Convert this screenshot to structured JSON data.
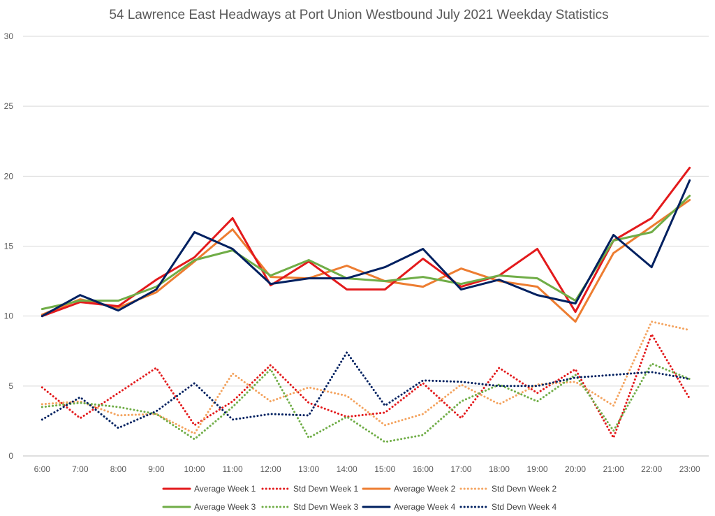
{
  "chart_data": {
    "type": "line",
    "title": "54 Lawrence East Headways at Port Union Westbound July 2021 Weekday Statistics",
    "xlabel": "",
    "ylabel": "",
    "categories": [
      "6:00",
      "7:00",
      "8:00",
      "9:00",
      "10:00",
      "11:00",
      "12:00",
      "13:00",
      "14:00",
      "15:00",
      "16:00",
      "17:00",
      "18:00",
      "19:00",
      "20:00",
      "21:00",
      "22:00",
      "23:00"
    ],
    "ylim": [
      0,
      30
    ],
    "yticks": [
      "0",
      "5",
      "10",
      "15",
      "20",
      "25",
      "30"
    ],
    "grid": "horizontal",
    "legend_position": "bottom",
    "series": [
      {
        "name": "Average Week 1",
        "style": "solid",
        "color": "#e31a1c",
        "values": [
          10.0,
          11.0,
          10.7,
          12.6,
          14.2,
          17.0,
          12.2,
          13.9,
          11.9,
          11.9,
          14.1,
          12.1,
          12.9,
          14.8,
          10.3,
          15.4,
          17.0,
          20.6
        ]
      },
      {
        "name": "Std Devn Week 1",
        "style": "dotted",
        "color": "#e31a1c",
        "values": [
          4.9,
          2.7,
          4.5,
          6.3,
          2.2,
          3.9,
          6.5,
          3.8,
          2.8,
          3.1,
          5.2,
          2.7,
          6.3,
          4.5,
          6.2,
          1.3,
          8.7,
          4.1
        ]
      },
      {
        "name": "Average Week 2",
        "style": "solid",
        "color": "#ed7d31",
        "values": [
          10.1,
          11.2,
          10.6,
          11.7,
          13.9,
          16.2,
          12.8,
          12.7,
          13.6,
          12.5,
          12.1,
          13.4,
          12.5,
          12.1,
          9.6,
          14.5,
          16.4,
          18.3
        ]
      },
      {
        "name": "Std Devn Week 2",
        "style": "dotted",
        "color": "#f4a460",
        "values": [
          3.7,
          3.9,
          2.9,
          3.0,
          1.6,
          5.9,
          3.9,
          4.9,
          4.3,
          2.2,
          3.0,
          5.1,
          3.7,
          5.1,
          5.3,
          3.6,
          9.6,
          9.0
        ]
      },
      {
        "name": "Average Week 3",
        "style": "solid",
        "color": "#70ad47",
        "values": [
          10.5,
          11.1,
          11.1,
          12.1,
          14.0,
          14.7,
          12.9,
          14.0,
          12.7,
          12.5,
          12.8,
          12.3,
          12.9,
          12.7,
          11.1,
          15.4,
          16.0,
          18.6
        ]
      },
      {
        "name": "Std Devn Week 3",
        "style": "dotted",
        "color": "#70ad47",
        "values": [
          3.5,
          3.8,
          3.5,
          3.0,
          1.2,
          3.5,
          6.2,
          1.3,
          2.8,
          1.0,
          1.5,
          3.9,
          5.1,
          3.9,
          5.8,
          1.8,
          6.6,
          5.5
        ]
      },
      {
        "name": "Average Week 4",
        "style": "solid",
        "color": "#002060",
        "values": [
          10.0,
          11.5,
          10.4,
          11.9,
          16.0,
          14.8,
          12.3,
          12.7,
          12.7,
          13.5,
          14.8,
          11.9,
          12.6,
          11.5,
          10.9,
          15.8,
          13.5,
          19.7
        ]
      },
      {
        "name": "Std Devn Week 4",
        "style": "dotted",
        "color": "#002060",
        "values": [
          2.6,
          4.2,
          2.0,
          3.2,
          5.2,
          2.6,
          3.0,
          2.9,
          7.4,
          3.6,
          5.4,
          5.3,
          5.0,
          5.0,
          5.6,
          5.8,
          6.0,
          5.5
        ]
      }
    ]
  }
}
